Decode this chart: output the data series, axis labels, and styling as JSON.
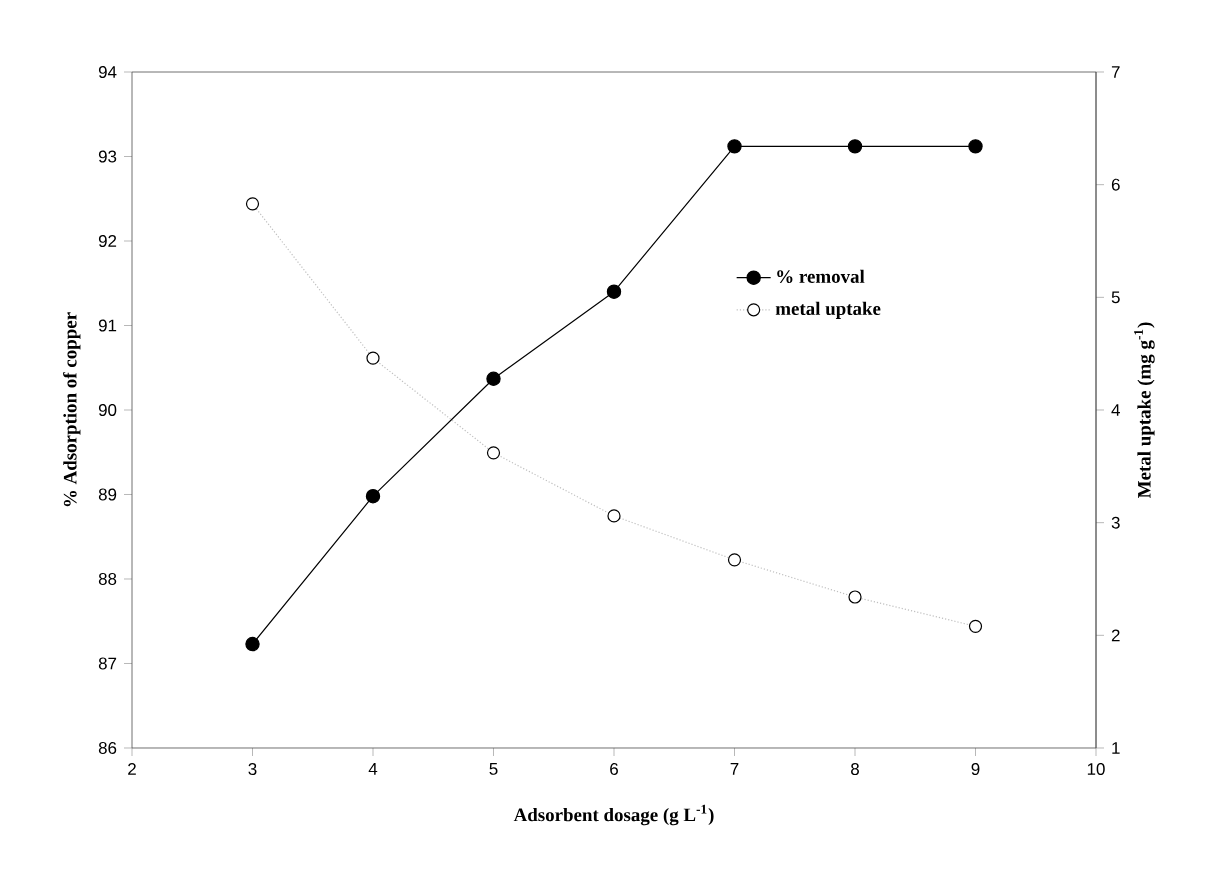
{
  "chart_data": {
    "type": "line",
    "xlabel": "Adsorbent dosage (g L$^{-1}$)",
    "ylabel": "% Adsorption of copper",
    "y2label": "Metal uptake (mg g$^{-1}$)",
    "x": [
      3,
      4,
      5,
      6,
      7,
      8,
      9
    ],
    "series": [
      {
        "name": "% removal",
        "color": "#000000",
        "values": [
          87.23,
          88.98,
          90.37,
          91.4,
          93.12,
          93.12,
          93.12
        ],
        "marker": "circle",
        "line_style": "solid"
      },
      {
        "name": "metal uptake",
        "color": "#000000",
        "values": [
          5.83,
          4.46,
          3.62,
          3.06,
          2.67,
          2.34,
          2.08
        ],
        "axis": "y2",
        "marker": "circle",
        "line_style": "dotted"
      }
    ],
    "xlim": [
      2,
      10
    ],
    "xticks": [
      2,
      3,
      4,
      5,
      6,
      7,
      8,
      9,
      10
    ],
    "ylim": [
      86,
      94
    ],
    "yticks": [
      86,
      87,
      88,
      89,
      90,
      91,
      92,
      93,
      94
    ],
    "y2lim": [
      1,
      7
    ],
    "y2ticks": [
      1,
      2,
      3,
      4,
      5,
      6,
      7
    ],
    "legend": "right"
  }
}
